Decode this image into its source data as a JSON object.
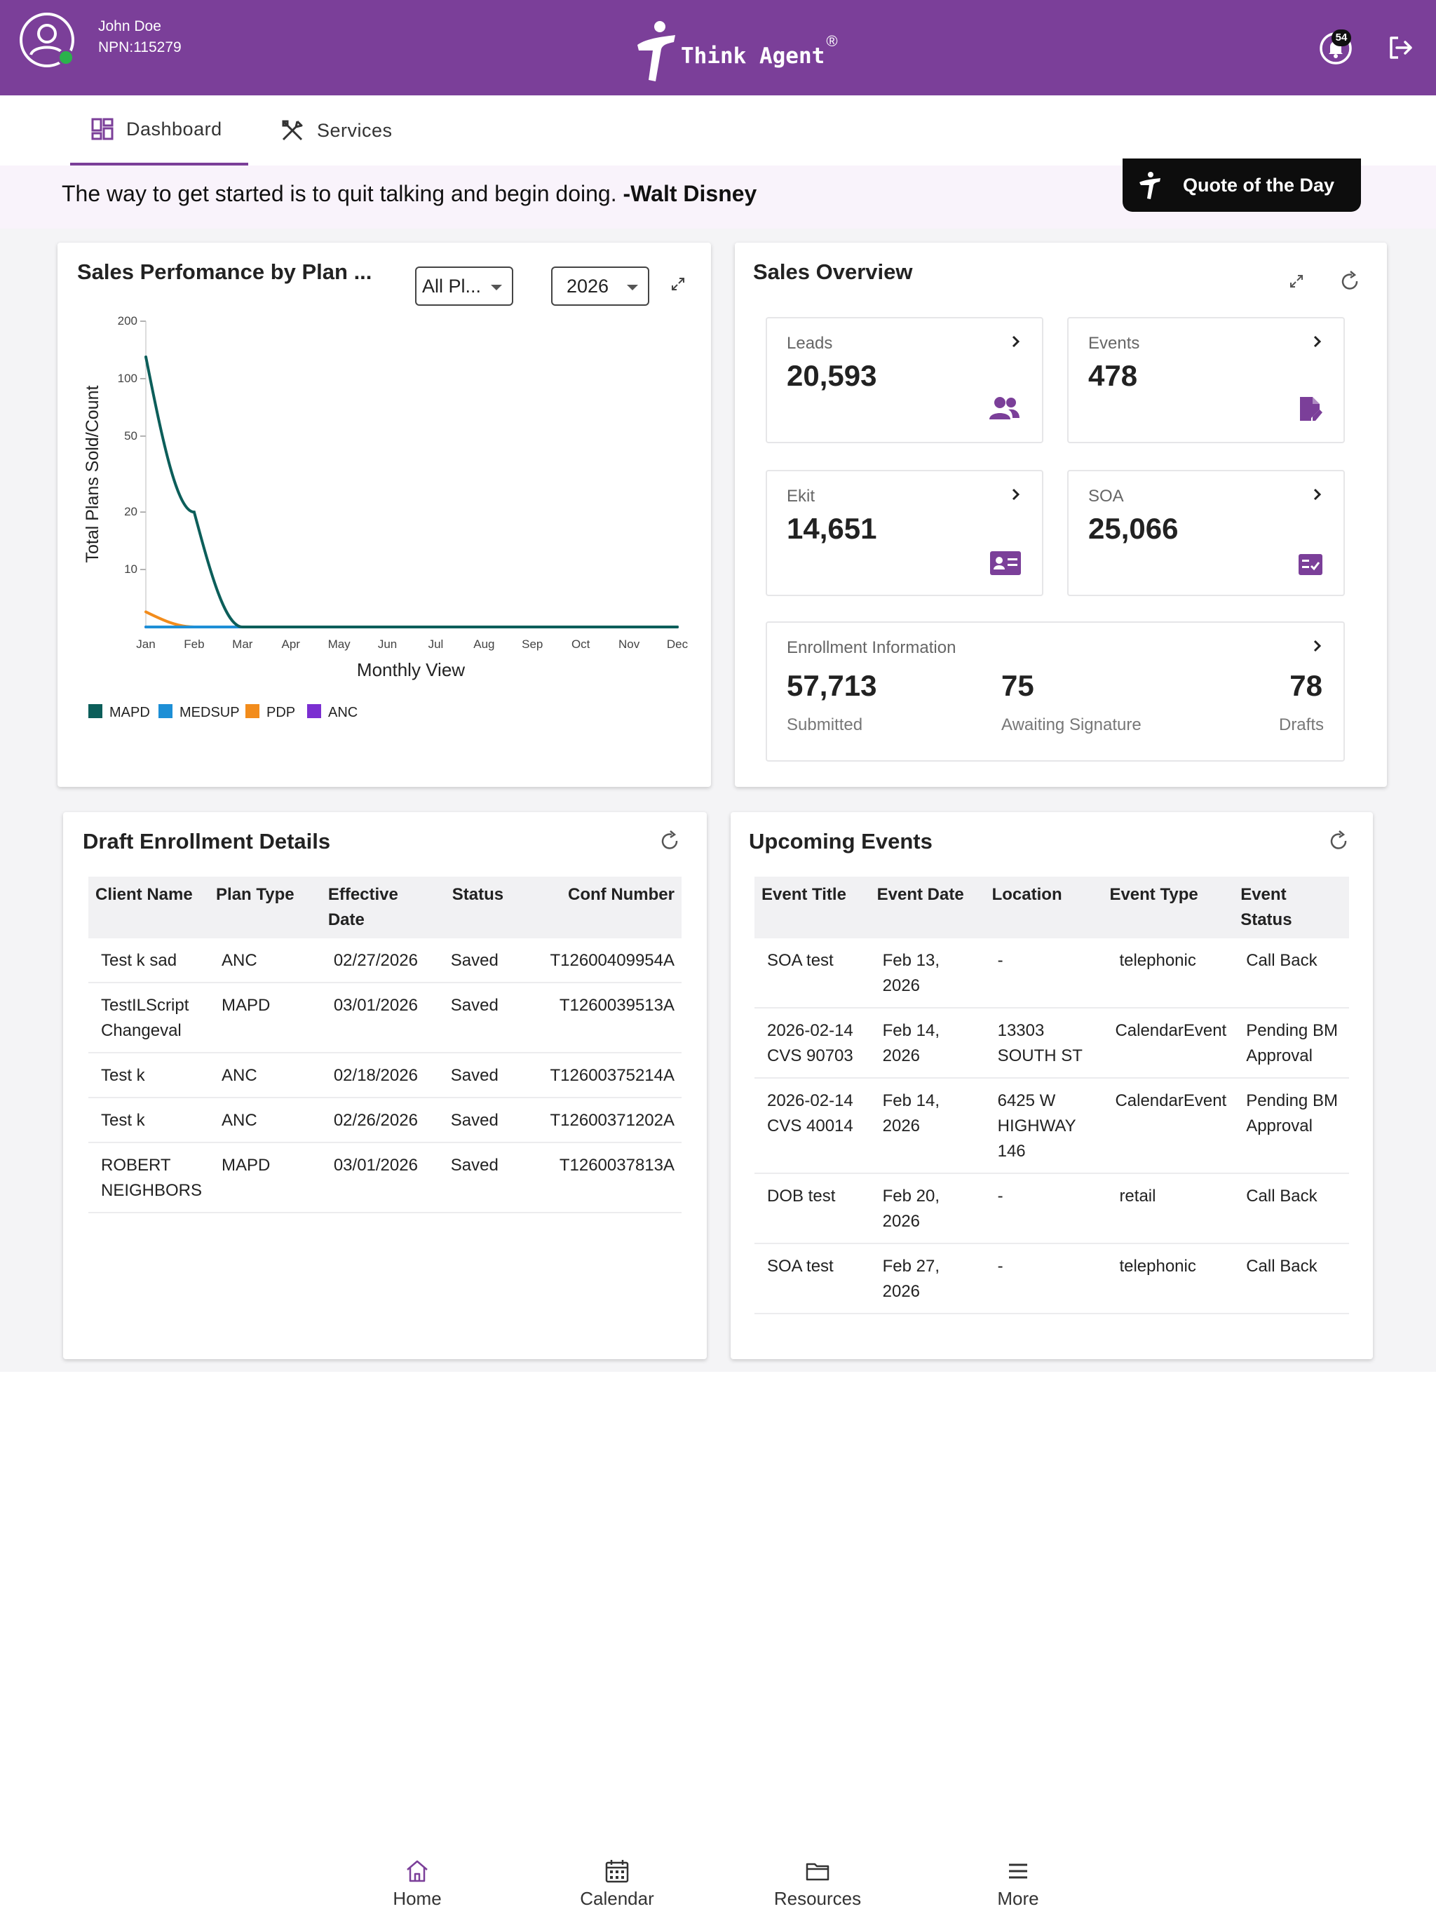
{
  "header": {
    "user_name": "John Doe",
    "user_npn": "NPN:115279",
    "logo_text": "Think Agent",
    "logo_mark": "®",
    "notification_count": "54",
    "brand_color": "#7b3f99"
  },
  "nav": {
    "tabs": [
      {
        "label": "Dashboard",
        "icon": "dashboard-icon",
        "active": true
      },
      {
        "label": "Services",
        "icon": "services-icon",
        "active": false
      }
    ]
  },
  "quote": {
    "text": "The way to get started is to quit talking and begin doing.",
    "author": "-Walt Disney",
    "button_label": "Quote of the Day"
  },
  "sales_performance": {
    "title": "Sales Perfomance by Plan ...",
    "plan_filter": "All Pl...",
    "year_filter": "2026"
  },
  "chart_data": {
    "type": "line",
    "xlabel": "Monthly View",
    "ylabel": "Total Plans Sold/Count",
    "categories": [
      "Jan",
      "Feb",
      "Mar",
      "Apr",
      "May",
      "Jun",
      "Jul",
      "Aug",
      "Sep",
      "Oct",
      "Nov",
      "Dec"
    ],
    "y_ticks": [
      10,
      20,
      50,
      100,
      200
    ],
    "y_tick_labels": [
      "10",
      "20",
      "50",
      "100",
      "200"
    ],
    "y_scale": "log",
    "ylim": [
      5,
      200
    ],
    "legend_position": "bottom-left",
    "series": [
      {
        "name": "MAPD",
        "color": "#0c5e5a",
        "values": [
          130,
          20,
          5,
          5,
          5,
          5,
          5,
          5,
          5,
          5,
          5,
          5
        ]
      },
      {
        "name": "MEDSUP",
        "color": "#1d8fd6",
        "values": [
          5,
          5,
          5,
          5,
          5,
          5,
          5,
          5,
          5,
          5,
          5,
          5
        ]
      },
      {
        "name": "PDP",
        "color": "#f28c1c",
        "values": [
          6,
          5,
          5,
          5,
          5,
          5,
          5,
          5,
          5,
          5,
          5,
          5
        ]
      },
      {
        "name": "ANC",
        "color": "#7b2fd1",
        "values": [
          5,
          5,
          5,
          5,
          5,
          5,
          5,
          5,
          5,
          5,
          5,
          5
        ]
      }
    ]
  },
  "sales_overview": {
    "title": "Sales Overview",
    "leads": {
      "label": "Leads",
      "value": "20,593",
      "icon": "people-icon"
    },
    "events": {
      "label": "Events",
      "value": "478",
      "icon": "edit-document-icon"
    },
    "ekit": {
      "label": "Ekit",
      "value": "14,651",
      "icon": "id-card-icon"
    },
    "soa": {
      "label": "SOA",
      "value": "25,066",
      "icon": "checklist-icon"
    },
    "enrollment": {
      "label": "Enrollment Information",
      "submitted_value": "57,713",
      "submitted_label": "Submitted",
      "awaiting_value": "75",
      "awaiting_label": "Awaiting Signature",
      "drafts_value": "78",
      "drafts_label": "Drafts"
    }
  },
  "draft_enrollment": {
    "title": "Draft Enrollment Details",
    "columns": [
      "Client Name",
      "Plan Type",
      "Effective Date",
      "Status",
      "Conf Number"
    ],
    "rows": [
      [
        "Test k sad",
        "ANC",
        "02/27/2026",
        "Saved",
        "T12600409954A"
      ],
      [
        "TestILScript Changeval",
        "MAPD",
        "03/01/2026",
        "Saved",
        "T1260039513A"
      ],
      [
        "Test k",
        "ANC",
        "02/18/2026",
        "Saved",
        "T12600375214A"
      ],
      [
        "Test k",
        "ANC",
        "02/26/2026",
        "Saved",
        "T12600371202A"
      ],
      [
        "ROBERT NEIGHBORS",
        "MAPD",
        "03/01/2026",
        "Saved",
        "T1260037813A"
      ]
    ]
  },
  "upcoming_events": {
    "title": "Upcoming Events",
    "columns": [
      "Event Title",
      "Event Date",
      "Location",
      "Event Type",
      "Event Status"
    ],
    "rows": [
      [
        "SOA test",
        "Feb 13, 2026",
        "-",
        "telephonic",
        "Call Back"
      ],
      [
        "2026-02-14 CVS 90703",
        "Feb 14, 2026",
        "13303 SOUTH ST",
        "CalendarEvent",
        "Pending BM Approval"
      ],
      [
        "2026-02-14 CVS 40014",
        "Feb 14, 2026",
        "6425 W HIGHWAY 146",
        "CalendarEvent",
        "Pending BM Approval"
      ],
      [
        "DOB test",
        "Feb 20, 2026",
        "-",
        "retail",
        "Call Back"
      ],
      [
        "SOA test",
        "Feb 27, 2026",
        "-",
        "telephonic",
        "Call Back"
      ]
    ]
  },
  "bottom_nav": [
    {
      "label": "Home",
      "icon": "home-icon"
    },
    {
      "label": "Calendar",
      "icon": "calendar-icon"
    },
    {
      "label": "Resources",
      "icon": "folder-icon"
    },
    {
      "label": "More",
      "icon": "menu-icon"
    }
  ]
}
